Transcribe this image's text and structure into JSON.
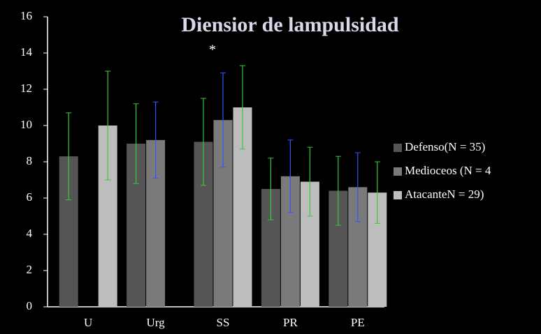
{
  "chart_data": {
    "type": "bar",
    "title": "Diensior de lampulsidad",
    "categories": [
      "U",
      "Urg",
      "SS",
      "PR",
      "PE"
    ],
    "series": [
      {
        "name": "Defenso(N = 35)",
        "color": "#555555",
        "error_color": "#33cc33",
        "values": [
          8.3,
          9.0,
          9.1,
          6.5,
          6.4
        ],
        "errors": [
          2.4,
          2.2,
          2.4,
          1.7,
          1.9
        ]
      },
      {
        "name": "Medioceos (N = 4",
        "color": "#7a7a7a",
        "error_color": "#3355ff",
        "values": [
          null,
          9.2,
          10.3,
          7.2,
          6.6
        ],
        "errors": [
          null,
          2.1,
          2.6,
          2.0,
          1.9
        ]
      },
      {
        "name": "AtacanteN = 29)",
        "color": "#bdbdbd",
        "error_color": "#33cc33",
        "values": [
          10.0,
          null,
          11.0,
          6.9,
          6.3
        ],
        "errors": [
          3.0,
          null,
          2.3,
          1.9,
          1.7
        ]
      }
    ],
    "annotations": [
      {
        "text": "*",
        "category": 2
      }
    ],
    "ylim": [
      0,
      16
    ],
    "yticks": [
      0,
      2,
      4,
      6,
      8,
      10,
      12,
      14,
      16
    ],
    "legend": "right"
  }
}
